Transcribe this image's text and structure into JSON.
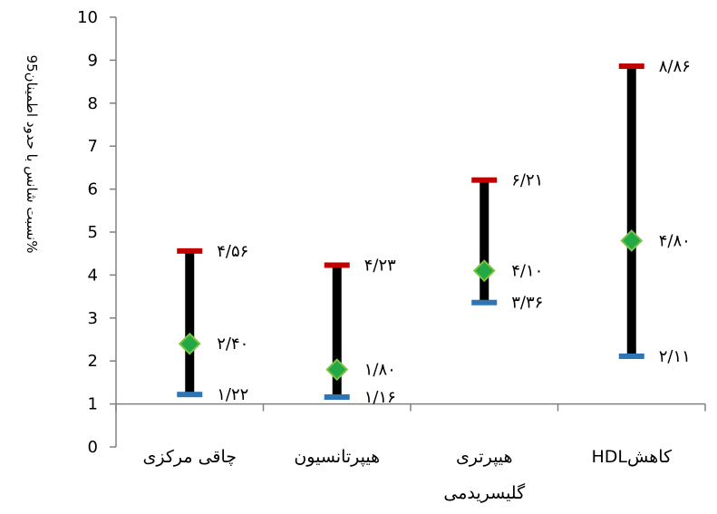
{
  "chart_data": {
    "type": "error-bar",
    "ylabel": "نسبت شانس با حدود اطمینان95%",
    "xlabel": "",
    "ylim": [
      0,
      10
    ],
    "yticks": [
      "0",
      "1",
      "2",
      "3",
      "4",
      "5",
      "6",
      "7",
      "8",
      "9",
      "10"
    ],
    "categories": [
      [
        "چاقی مرکزی"
      ],
      [
        "هیپرتانسیون"
      ],
      [
        "هیپرتری",
        "گلیسریدمی"
      ],
      [
        "HDLکاهش"
      ]
    ],
    "series": [
      {
        "name": "upper",
        "values": [
          4.56,
          4.23,
          6.21,
          8.86
        ],
        "labels": [
          "۴/۵۶",
          "۴/۲۳",
          "۶/۲۱",
          "۸/۸۶"
        ]
      },
      {
        "name": "point",
        "values": [
          2.4,
          1.8,
          4.1,
          4.8
        ],
        "labels": [
          "۲/۴۰",
          "۱/۸۰",
          "۴/۱۰",
          "۴/۸۰"
        ]
      },
      {
        "name": "lower",
        "values": [
          1.22,
          1.16,
          3.36,
          2.11
        ],
        "labels": [
          "۱/۲۲",
          "۱/۱۶",
          "۳/۳۶",
          "۲/۱۱"
        ]
      }
    ],
    "colors": {
      "upper": "#C00000",
      "lower": "#2E75B6",
      "point_fill": "#22A845",
      "point_stroke": "#7DC243",
      "whisker": "#000000",
      "axis": "#808080"
    }
  }
}
